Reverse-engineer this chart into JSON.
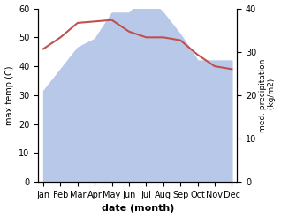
{
  "months": [
    "Jan",
    "Feb",
    "Mar",
    "Apr",
    "May",
    "Jun",
    "Jul",
    "Aug",
    "Sep",
    "Oct",
    "Nov",
    "Dec"
  ],
  "temp": [
    46,
    50,
    55,
    55.5,
    56,
    52,
    50,
    50,
    49,
    44,
    40,
    39
  ],
  "precip_kg": [
    21,
    26,
    31,
    33,
    39,
    39,
    43,
    39,
    34,
    28,
    28,
    28
  ],
  "temp_color": "#c0504d",
  "precip_fill_color": "#b8c8e8",
  "ylabel_left": "max temp (C)",
  "ylabel_right": "med. precipitation\n (kg/m2)",
  "xlabel": "date (month)",
  "ylim_left": [
    0,
    60
  ],
  "ylim_right": [
    0,
    40
  ],
  "yticks_left": [
    0,
    10,
    20,
    30,
    40,
    50,
    60
  ],
  "yticks_right": [
    0,
    10,
    20,
    30,
    40
  ],
  "bg_color": "#ffffff"
}
